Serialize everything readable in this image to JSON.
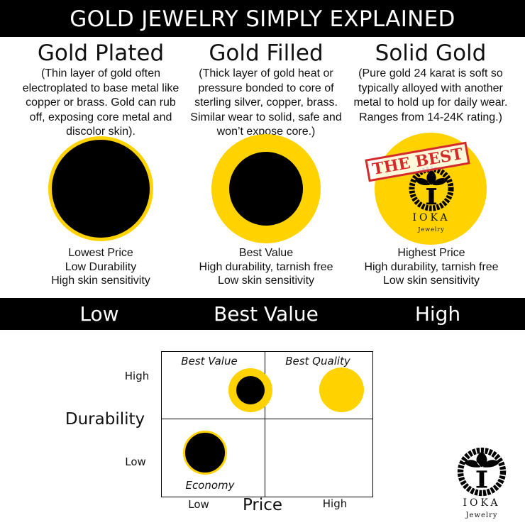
{
  "title": "GOLD JEWELRY SIMPLY EXPLAINED",
  "colors": {
    "gold": "#FFD200",
    "black": "#000000",
    "stamp_red": "#D42A2A"
  },
  "columns": [
    {
      "heading": "Gold Plated",
      "description": "(Thin layer of gold often electroplated to base metal like copper or brass. Gold can rub off, exposing core metal and discolor skin).",
      "captions": [
        "Lowest Price",
        "Low Durability",
        "High skin sensitivity"
      ]
    },
    {
      "heading": "Gold Filled",
      "description": "(Thick layer of gold heat or pressure bonded to core of sterling silver, copper, brass. Similar wear to solid, safe and won’t expose core.)",
      "captions": [
        "Best Value",
        "High durability, tarnish free",
        "Low skin sensitivity"
      ]
    },
    {
      "heading": "Solid Gold",
      "description": "(Pure gold 24 karat is soft so typically alloyed with another metal to hold up for daily wear. Ranges from 14-24K rating.)",
      "captions": [
        "Highest Price",
        "High durability, tarnish free",
        "Low skin sensitivity"
      ]
    }
  ],
  "stamp": "THE BEST",
  "logo": {
    "name": "IOKA",
    "sub": "Jewelry"
  },
  "band": [
    "Low",
    "Best Value",
    "High"
  ],
  "matrix": {
    "y_axis_label": "Durability",
    "x_axis_label": "Price",
    "y_ticks": [
      "High",
      "Low"
    ],
    "x_ticks": [
      "Low",
      "High"
    ],
    "quadrants": {
      "top_left": "Best Value",
      "top_right": "Best Quality",
      "bottom_left": "Economy"
    }
  }
}
